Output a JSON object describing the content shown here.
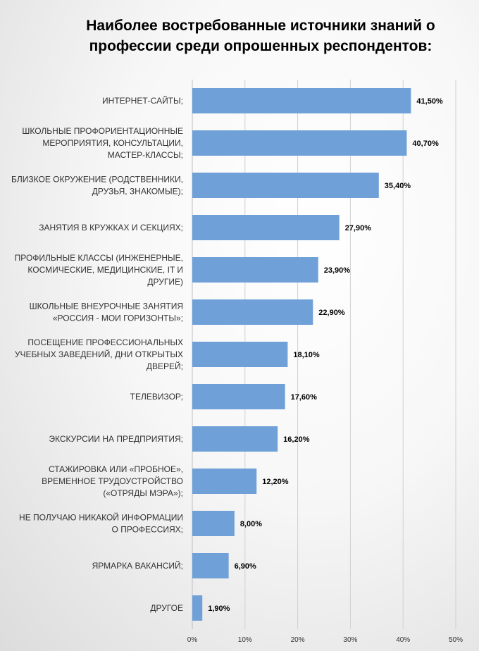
{
  "chart_data": {
    "type": "bar",
    "orientation": "horizontal",
    "title_lines": [
      "Наиболее востребованные источники знаний о",
      "профессии среди опрошенных респондентов:"
    ],
    "categories": [
      [
        "ИНТЕРНЕТ-САЙТЫ;"
      ],
      [
        "ШКОЛЬНЫЕ ПРОФОРИЕНТАЦИОННЫЕ",
        "МЕРОПРИЯТИЯ, КОНСУЛЬТАЦИИ,",
        "МАСТЕР-КЛАССЫ;"
      ],
      [
        "БЛИЗКОЕ ОКРУЖЕНИЕ (РОДСТВЕННИКИ,",
        "ДРУЗЬЯ, ЗНАКОМЫЕ);"
      ],
      [
        "ЗАНЯТИЯ В КРУЖКАХ И СЕКЦИЯХ;"
      ],
      [
        "ПРОФИЛЬНЫЕ КЛАССЫ (ИНЖЕНЕРНЫЕ,",
        "КОСМИЧЕСКИЕ, МЕДИЦИНСКИЕ, IT И",
        "ДРУГИЕ)"
      ],
      [
        "ШКОЛЬНЫЕ ВНЕУРОЧНЫЕ ЗАНЯТИЯ",
        "«РОССИЯ - МОИ ГОРИЗОНТЫ»;"
      ],
      [
        "ПОСЕЩЕНИЕ ПРОФЕССИОНАЛЬНЫХ",
        "УЧЕБНЫХ ЗАВЕДЕНИЙ, ДНИ ОТКРЫТЫХ",
        "ДВЕРЕЙ;"
      ],
      [
        "ТЕЛЕВИЗОР;"
      ],
      [
        "ЭКСКУРСИИ НА ПРЕДПРИЯТИЯ;"
      ],
      [
        "СТАЖИРОВКА ИЛИ «ПРОБНОЕ»,",
        "ВРЕМЕННОЕ ТРУДОУСТРОЙСТВО",
        "(«ОТРЯДЫ МЭРА»);"
      ],
      [
        "НЕ ПОЛУЧАЮ НИКАКОЙ ИНФОРМАЦИИ",
        "О ПРОФЕССИЯХ;"
      ],
      [
        "ЯРМАРКА ВАКАНСИЙ;"
      ],
      [
        "ДРУГОЕ"
      ]
    ],
    "values": [
      41.5,
      40.7,
      35.4,
      27.9,
      23.9,
      22.9,
      18.1,
      17.6,
      16.2,
      12.2,
      8.0,
      6.9,
      1.9
    ],
    "value_labels": [
      "41,50%",
      "40,70%",
      "35,40%",
      "27,90%",
      "23,90%",
      "22,90%",
      "18,10%",
      "17,60%",
      "16,20%",
      "12,20%",
      "8,00%",
      "6,90%",
      "1,90%"
    ],
    "xlim": [
      0,
      50
    ],
    "x_ticks": [
      0,
      10,
      20,
      30,
      40,
      50
    ],
    "x_tick_labels": [
      "0%",
      "10%",
      "20%",
      "30%",
      "40%",
      "50%"
    ],
    "bar_color": "#6fa1d8",
    "grid_color": "#d0d0d0",
    "grid": true,
    "legend": false
  }
}
